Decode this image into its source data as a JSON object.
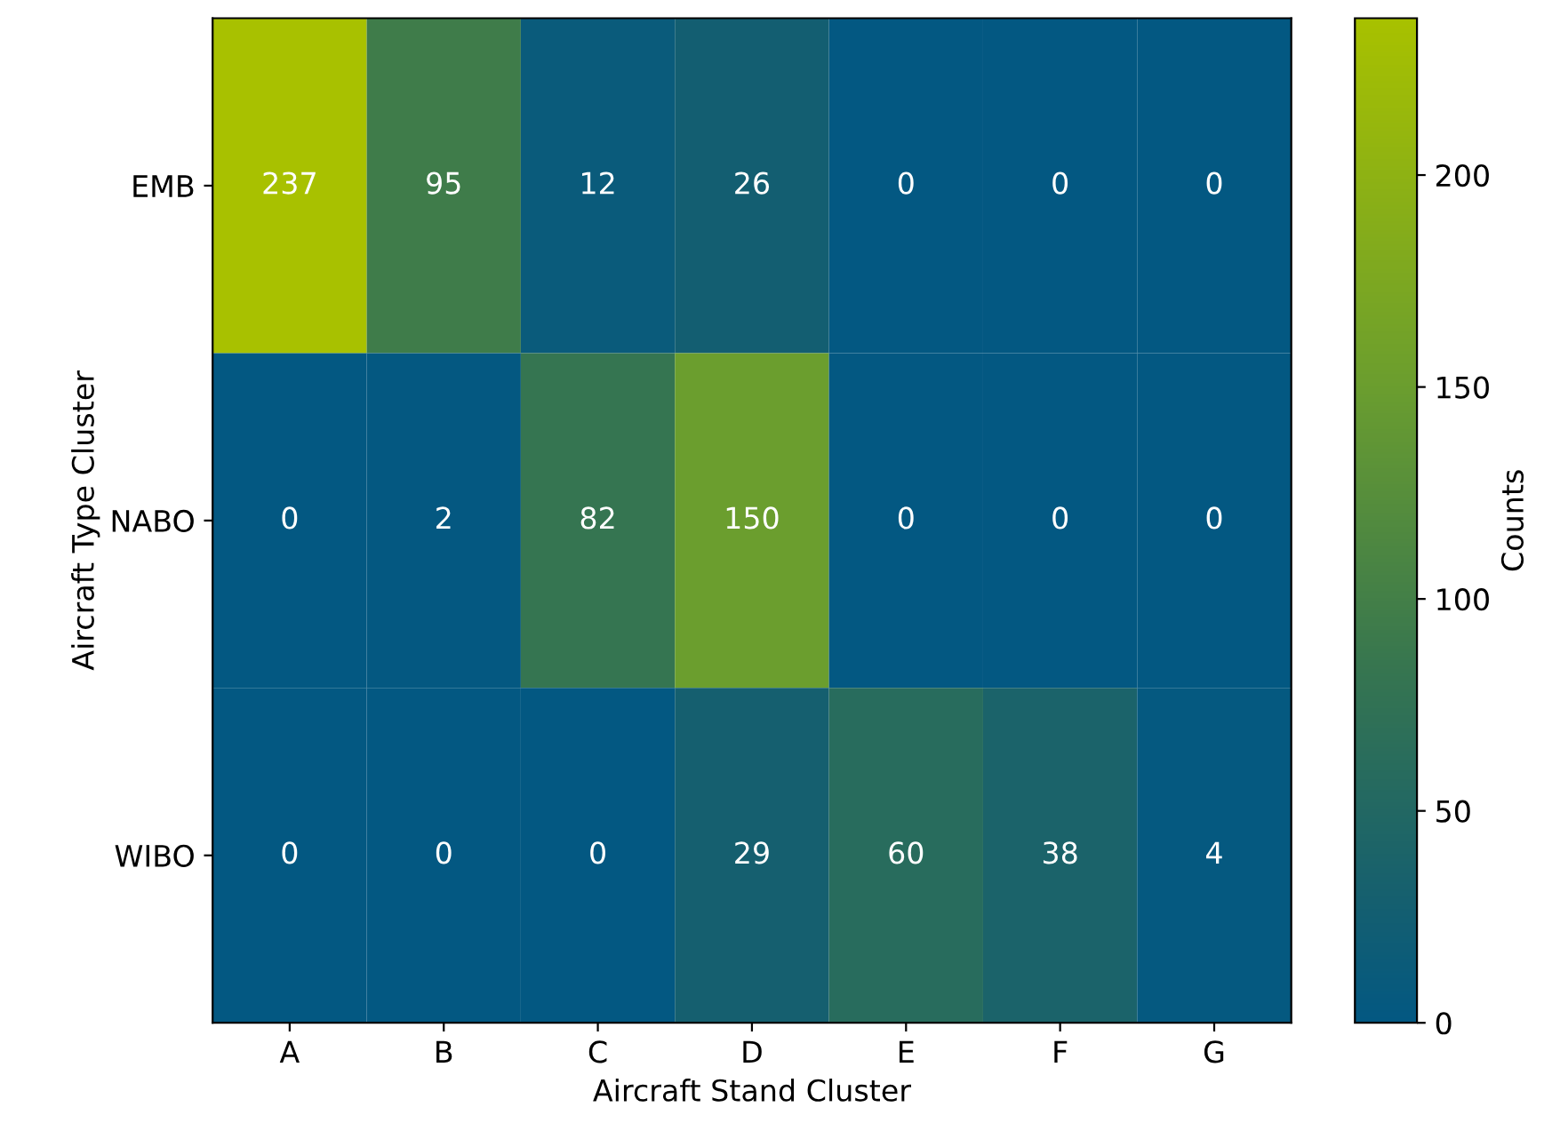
{
  "chart_data": {
    "type": "heatmap",
    "xlabel": "Aircraft Stand Cluster",
    "ylabel": "Aircraft Type Cluster",
    "clabel": "Counts",
    "categories": [
      "A",
      "B",
      "C",
      "D",
      "E",
      "F",
      "G"
    ],
    "y_categories": [
      "EMB",
      "NABO",
      "WIBO"
    ],
    "cells": [
      [
        237,
        95,
        12,
        26,
        0,
        0,
        0
      ],
      [
        0,
        2,
        82,
        150,
        0,
        0,
        0
      ],
      [
        0,
        0,
        0,
        29,
        60,
        38,
        4
      ]
    ],
    "clim": [
      0,
      237
    ],
    "cticks": [
      0,
      50,
      100,
      150,
      200
    ],
    "data_labels": true
  }
}
